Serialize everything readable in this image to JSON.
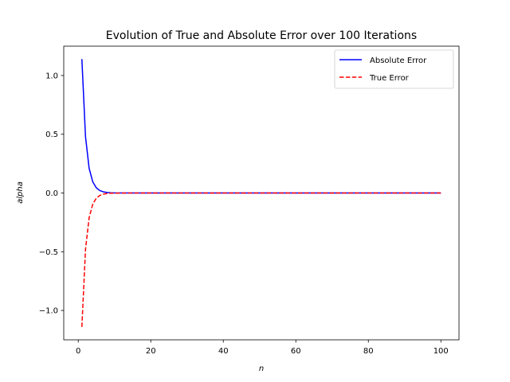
{
  "chart_data": {
    "type": "line",
    "title": "Evolution of True and Absolute Error over 100 Iterations",
    "xlabel": "n",
    "ylabel": "alpha",
    "xlim": [
      -4.0,
      105.0
    ],
    "ylim": [
      -1.25,
      1.25
    ],
    "xticks": [
      0,
      20,
      40,
      60,
      80,
      100
    ],
    "xtick_labels": [
      "0",
      "20",
      "40",
      "60",
      "80",
      "100"
    ],
    "yticks": [
      -1.0,
      -0.5,
      0.0,
      0.5,
      1.0
    ],
    "ytick_labels": [
      "−1.0",
      "−0.5",
      "0.0",
      "0.5",
      "1.0"
    ],
    "grid": false,
    "legend_position": "upper-right",
    "x": [
      1,
      2,
      3,
      4,
      5,
      6,
      7,
      8,
      9,
      10,
      15,
      20,
      30,
      40,
      50,
      60,
      70,
      80,
      90,
      100
    ],
    "series": [
      {
        "name": "Absolute Error",
        "color": "#0000ff",
        "style": "solid",
        "values": [
          1.14,
          0.48,
          0.21,
          0.095,
          0.043,
          0.02,
          0.009,
          0.004,
          0.002,
          0.001,
          0.0,
          0.0,
          0.0,
          0.0,
          0.0,
          0.0,
          0.0,
          0.0,
          0.0,
          0.0
        ]
      },
      {
        "name": "True Error",
        "color": "#ff0000",
        "style": "dashed",
        "values": [
          -1.14,
          -0.48,
          -0.21,
          -0.095,
          -0.043,
          -0.02,
          -0.009,
          -0.004,
          -0.002,
          -0.001,
          0.0,
          0.0,
          0.0,
          0.0,
          0.0,
          0.0,
          0.0,
          0.0,
          0.0,
          0.0
        ]
      }
    ]
  }
}
